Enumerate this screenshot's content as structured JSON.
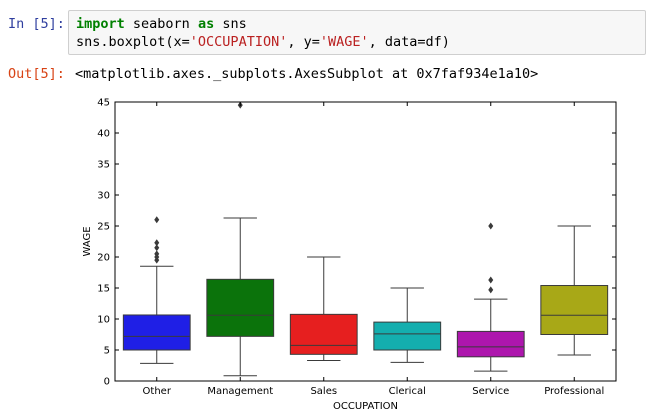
{
  "input_cell": {
    "prompt": "In [5]:",
    "line1": {
      "kw1": "import",
      "mod": " seaborn ",
      "kw2": "as",
      "alias": " sns"
    },
    "line2": {
      "pre": "sns.boxplot(x=",
      "x_arg": "'OCCUPATION'",
      "mid": ", y=",
      "y_arg": "'WAGE'",
      "post": ", data=df)"
    }
  },
  "output_cell": {
    "prompt": "Out[5]:",
    "text": "<matplotlib.axes._subplots.AxesSubplot at 0x7faf934e1a10>"
  },
  "chart_data": {
    "type": "box",
    "xlabel": "OCCUPATION",
    "ylabel": "WAGE",
    "ylim": [
      0,
      45
    ],
    "yticks": [
      0,
      5,
      10,
      15,
      20,
      25,
      30,
      35,
      40,
      45
    ],
    "categories": [
      "Other",
      "Management",
      "Sales",
      "Clerical",
      "Service",
      "Professional"
    ],
    "colors": [
      "#1f1fe6",
      "#0b730b",
      "#e61f1f",
      "#14aeae",
      "#ad16ad",
      "#a8a817"
    ],
    "boxes": [
      {
        "whislo": 2.85,
        "q1": 5.0,
        "med": 7.2,
        "q3": 10.65,
        "whishi": 18.5,
        "fliers": [
          19.5,
          20.0,
          20.5,
          21.5,
          22.3,
          26.0
        ]
      },
      {
        "whislo": 0.85,
        "q1": 7.2,
        "med": 10.6,
        "q3": 16.4,
        "whishi": 26.3,
        "fliers": [
          44.5
        ]
      },
      {
        "whislo": 3.3,
        "q1": 4.3,
        "med": 5.75,
        "q3": 10.75,
        "whishi": 20.0,
        "fliers": []
      },
      {
        "whislo": 3.0,
        "q1": 5.0,
        "med": 7.6,
        "q3": 9.5,
        "whishi": 15.0,
        "fliers": []
      },
      {
        "whislo": 1.6,
        "q1": 3.9,
        "med": 5.5,
        "q3": 8.0,
        "whishi": 13.2,
        "fliers": [
          14.7,
          16.3,
          25.0
        ]
      },
      {
        "whislo": 4.2,
        "q1": 7.5,
        "med": 10.6,
        "q3": 15.4,
        "whishi": 25.0,
        "fliers": []
      }
    ]
  }
}
